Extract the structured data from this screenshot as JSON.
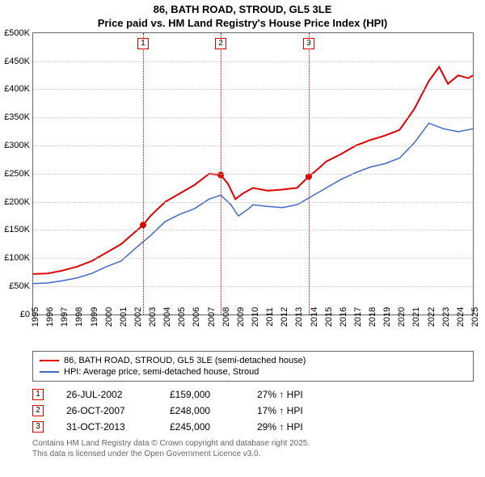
{
  "title": {
    "line1": "86, BATH ROAD, STROUD, GL5 3LE",
    "line2": "Price paid vs. HM Land Registry's House Price Index (HPI)"
  },
  "chart": {
    "type": "line",
    "background_color": "#ffffff",
    "grid_color": "#cccccc",
    "border_color": "#666666",
    "x_start_year": 1995,
    "x_end_year": 2025,
    "x_ticks": [
      1995,
      1996,
      1997,
      1998,
      1999,
      2000,
      2001,
      2002,
      2003,
      2004,
      2005,
      2006,
      2007,
      2008,
      2009,
      2010,
      2011,
      2012,
      2013,
      2014,
      2015,
      2016,
      2017,
      2018,
      2019,
      2020,
      2021,
      2022,
      2023,
      2024,
      2025
    ],
    "y_min": 0,
    "y_max": 500000,
    "y_ticks": [
      0,
      50000,
      100000,
      150000,
      200000,
      250000,
      300000,
      350000,
      400000,
      450000,
      500000
    ],
    "y_tick_labels": [
      "£0",
      "£50K",
      "£100K",
      "£150K",
      "£200K",
      "£250K",
      "£300K",
      "£350K",
      "£400K",
      "£450K",
      "£500K"
    ],
    "series": [
      {
        "id": "price_paid",
        "label": "86, BATH ROAD, STROUD, GL5 3LE (semi-detached house)",
        "color": "#e00000",
        "line_width": 2,
        "data": [
          [
            1995,
            72000
          ],
          [
            1996,
            73000
          ],
          [
            1997,
            78000
          ],
          [
            1998,
            85000
          ],
          [
            1999,
            95000
          ],
          [
            2000,
            110000
          ],
          [
            2001,
            125000
          ],
          [
            2002.5,
            159000
          ],
          [
            2003,
            175000
          ],
          [
            2004,
            200000
          ],
          [
            2005,
            215000
          ],
          [
            2006,
            230000
          ],
          [
            2007,
            250000
          ],
          [
            2007.8,
            248000
          ],
          [
            2008.3,
            232000
          ],
          [
            2008.8,
            205000
          ],
          [
            2009.3,
            215000
          ],
          [
            2010,
            225000
          ],
          [
            2011,
            220000
          ],
          [
            2012,
            222000
          ],
          [
            2013,
            225000
          ],
          [
            2013.8,
            245000
          ],
          [
            2014.5,
            260000
          ],
          [
            2015,
            272000
          ],
          [
            2016,
            285000
          ],
          [
            2017,
            300000
          ],
          [
            2018,
            310000
          ],
          [
            2019,
            318000
          ],
          [
            2020,
            328000
          ],
          [
            2021,
            365000
          ],
          [
            2022,
            415000
          ],
          [
            2022.7,
            440000
          ],
          [
            2023.3,
            410000
          ],
          [
            2024,
            425000
          ],
          [
            2024.7,
            420000
          ],
          [
            2025,
            425000
          ]
        ]
      },
      {
        "id": "hpi",
        "label": "HPI: Average price, semi-detached house, Stroud",
        "color": "#4169c8",
        "line_width": 1.5,
        "data": [
          [
            1995,
            55000
          ],
          [
            1996,
            56000
          ],
          [
            1997,
            60000
          ],
          [
            1998,
            65000
          ],
          [
            1999,
            73000
          ],
          [
            2000,
            85000
          ],
          [
            2001,
            95000
          ],
          [
            2002,
            118000
          ],
          [
            2003,
            140000
          ],
          [
            2004,
            165000
          ],
          [
            2005,
            178000
          ],
          [
            2006,
            188000
          ],
          [
            2007,
            205000
          ],
          [
            2007.8,
            212000
          ],
          [
            2008.5,
            195000
          ],
          [
            2009,
            175000
          ],
          [
            2009.7,
            188000
          ],
          [
            2010,
            195000
          ],
          [
            2011,
            192000
          ],
          [
            2012,
            190000
          ],
          [
            2013,
            195000
          ],
          [
            2014,
            210000
          ],
          [
            2015,
            225000
          ],
          [
            2016,
            240000
          ],
          [
            2017,
            252000
          ],
          [
            2018,
            262000
          ],
          [
            2019,
            268000
          ],
          [
            2020,
            278000
          ],
          [
            2021,
            305000
          ],
          [
            2022,
            340000
          ],
          [
            2023,
            330000
          ],
          [
            2024,
            325000
          ],
          [
            2025,
            330000
          ]
        ]
      }
    ],
    "markers": [
      {
        "num": "1",
        "year": 2002.5,
        "value": 159000,
        "color": "#e00000"
      },
      {
        "num": "2",
        "year": 2007.8,
        "value": 248000,
        "color": "#e00000"
      },
      {
        "num": "3",
        "year": 2013.8,
        "value": 245000,
        "color": "#e00000"
      }
    ]
  },
  "legend": {
    "items": [
      {
        "color": "#e00000",
        "label": "86, BATH ROAD, STROUD, GL5 3LE (semi-detached house)"
      },
      {
        "color": "#4169c8",
        "label": "HPI: Average price, semi-detached house, Stroud"
      }
    ]
  },
  "annotations": [
    {
      "num": "1",
      "color": "#e00000",
      "date": "26-JUL-2002",
      "price": "£159,000",
      "pct": "27% ↑ HPI"
    },
    {
      "num": "2",
      "color": "#e00000",
      "date": "26-OCT-2007",
      "price": "£248,000",
      "pct": "17% ↑ HPI"
    },
    {
      "num": "3",
      "color": "#e00000",
      "date": "31-OCT-2013",
      "price": "£245,000",
      "pct": "29% ↑ HPI"
    }
  ],
  "footer": {
    "line1": "Contains HM Land Registry data © Crown copyright and database right 2025.",
    "line2": "This data is licensed under the Open Government Licence v3.0."
  }
}
